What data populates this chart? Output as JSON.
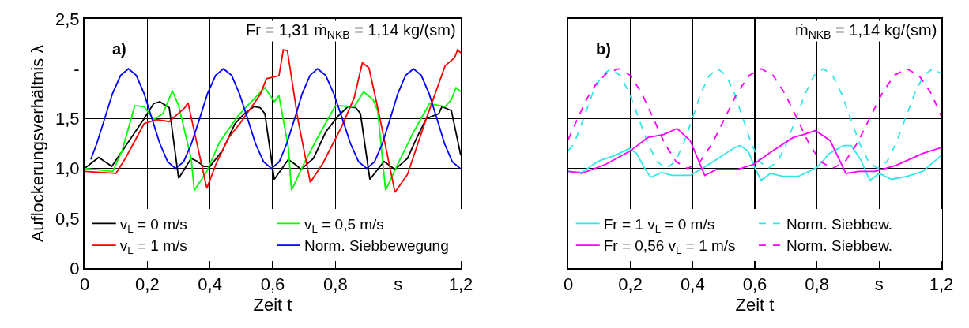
{
  "chart_data": [
    {
      "type": "line",
      "xlabel": "Zeit t",
      "ylabel": "Auflockerungsverhältnis λ",
      "xlim": [
        0,
        1.2
      ],
      "ylim": [
        0,
        2.5
      ],
      "xticks": [
        0,
        {
          "value": 0.2,
          "label": "0,2"
        },
        {
          "value": 0.4,
          "label": "0,4"
        },
        {
          "value": 0.6,
          "label": "0,6"
        },
        {
          "value": 0.8,
          "label": "0,8"
        },
        {
          "value": 1.0,
          "label": "s"
        },
        {
          "value": 1.2,
          "label": "1,2"
        }
      ],
      "yticks": [
        0,
        {
          "value": 0.5,
          "label": "0,5"
        },
        {
          "value": 1.0,
          "label": "1,0"
        },
        {
          "value": 1.5,
          "label": "1,5"
        },
        {
          "value": 2.0,
          "label": "-"
        },
        {
          "value": 2.5,
          "label": "2,5"
        }
      ],
      "grid": true,
      "legend": "bottom",
      "line_style": "solid",
      "annotations": [
        "a)",
        "Fr = 1,31 ṁ$_{NKB}$ = 1,14 kg/(sm)"
      ],
      "series": [
        {
          "name": "v$_{L}$ = 0 m/s",
          "color": "#000000",
          "x": [
            0,
            0.045,
            0.087,
            0.19,
            0.22,
            0.24,
            0.27,
            0.3,
            0.34,
            0.36,
            0.38,
            0.4,
            0.44,
            0.48,
            0.51,
            0.54,
            0.56,
            0.575,
            0.605,
            0.65,
            0.676,
            0.69,
            0.73,
            0.77,
            0.81,
            0.84,
            0.865,
            0.88,
            0.91,
            0.955,
            0.99,
            1.03,
            1.06,
            1.09,
            1.13,
            1.14,
            1.17,
            1.2
          ],
          "values": [
            1.0,
            1.11,
            1.02,
            1.5,
            1.65,
            1.67,
            1.61,
            0.9,
            1.1,
            1.07,
            1.02,
            1.02,
            1.18,
            1.45,
            1.55,
            1.62,
            1.61,
            1.55,
            0.89,
            1.09,
            1.03,
            0.99,
            1.1,
            1.37,
            1.53,
            1.62,
            1.61,
            1.55,
            0.89,
            1.07,
            0.99,
            1.1,
            1.31,
            1.5,
            1.55,
            1.62,
            1.58,
            1.13
          ]
        },
        {
          "name": "v$_{L}$ = 0,5 m/s",
          "color": "#00ff00",
          "x": [
            0,
            0.09,
            0.12,
            0.16,
            0.19,
            0.22,
            0.25,
            0.28,
            0.3,
            0.34,
            0.35,
            0.39,
            0.43,
            0.49,
            0.52,
            0.575,
            0.605,
            0.62,
            0.65,
            0.66,
            0.7,
            0.74,
            0.8,
            0.86,
            0.89,
            0.92,
            0.935,
            0.96,
            1.0,
            1.05,
            1.1,
            1.15,
            1.17,
            1.185,
            1.2
          ],
          "values": [
            1.0,
            0.97,
            1.18,
            1.63,
            1.62,
            1.49,
            1.55,
            1.78,
            1.63,
            1.1,
            0.78,
            0.97,
            1.26,
            1.53,
            1.63,
            1.81,
            1.67,
            1.73,
            1.21,
            0.78,
            1.05,
            1.29,
            1.63,
            1.62,
            1.77,
            1.69,
            1.58,
            0.78,
            1.05,
            1.37,
            1.65,
            1.62,
            1.69,
            1.81,
            1.77
          ]
        },
        {
          "name": "v$_{L}$ = 1 m/s",
          "color": "#ff0000",
          "x": [
            0,
            0.1,
            0.13,
            0.19,
            0.23,
            0.27,
            0.32,
            0.33,
            0.35,
            0.39,
            0.42,
            0.46,
            0.5,
            0.56,
            0.58,
            0.62,
            0.634,
            0.647,
            0.68,
            0.72,
            0.76,
            0.82,
            0.86,
            0.886,
            0.907,
            0.937,
            0.99,
            1.03,
            1.09,
            1.15,
            1.18,
            1.19,
            1.2
          ],
          "values": [
            0.97,
            0.95,
            1.1,
            1.45,
            1.49,
            1.47,
            1.61,
            1.66,
            1.37,
            0.8,
            1.05,
            1.31,
            1.47,
            1.74,
            1.9,
            1.93,
            2.19,
            2.18,
            1.5,
            0.86,
            1.05,
            1.42,
            1.71,
            2.06,
            2.01,
            1.58,
            0.76,
            0.94,
            1.5,
            2.03,
            2.11,
            2.19,
            2.16
          ]
        },
        {
          "name": "Norm. Siebbewegung",
          "color": "#0000ff",
          "x": [
            0.02,
            0.039,
            0.064,
            0.089,
            0.115,
            0.14,
            0.165,
            0.19,
            0.215,
            0.24,
            0.265,
            0.29,
            0.316,
            0.341,
            0.367,
            0.392,
            0.418,
            0.443,
            0.469,
            0.494,
            0.52,
            0.545,
            0.571,
            0.596,
            0.621,
            0.645,
            0.67,
            0.694,
            0.719,
            0.743,
            0.769,
            0.795,
            0.822,
            0.848,
            0.874,
            0.9,
            0.925,
            0.95,
            0.975,
            0.999,
            1.024,
            1.049,
            1.074,
            1.099,
            1.124,
            1.148,
            1.173,
            1.198
          ],
          "values": [
            1.09,
            1.25,
            1.5,
            1.75,
            1.933,
            2.0,
            1.933,
            1.75,
            1.5,
            1.25,
            1.067,
            1.0,
            1.067,
            1.25,
            1.5,
            1.75,
            1.933,
            2.0,
            1.933,
            1.75,
            1.5,
            1.25,
            1.067,
            1.0,
            1.067,
            1.25,
            1.5,
            1.75,
            1.933,
            2.0,
            1.933,
            1.75,
            1.5,
            1.25,
            1.067,
            1.0,
            1.067,
            1.25,
            1.5,
            1.75,
            1.933,
            2.0,
            1.933,
            1.75,
            1.5,
            1.25,
            1.067,
            1.0
          ]
        }
      ]
    },
    {
      "type": "line",
      "xlabel": "Zeit t",
      "xlim": [
        0,
        1.2
      ],
      "ylim": [
        0,
        2.5
      ],
      "tick_labels": "x",
      "xticks": [
        0,
        {
          "value": 0.2,
          "label": "0,2"
        },
        {
          "value": 0.4,
          "label": "0,4"
        },
        {
          "value": 0.6,
          "label": "0,6"
        },
        {
          "value": 0.8,
          "label": "0,8"
        },
        {
          "value": 1.0,
          "label": "s"
        },
        {
          "value": 1.2,
          "label": "1,2"
        }
      ],
      "yticks": [
        {
          "value": 0,
          "label": null
        },
        {
          "value": 0.5,
          "label": null
        },
        {
          "value": 1.0,
          "label": null
        },
        {
          "value": 1.5,
          "label": null
        },
        {
          "value": 2.0,
          "label": null
        },
        {
          "value": 2.5,
          "label": null
        }
      ],
      "grid": true,
      "legend": "bottom",
      "line_style": "solid",
      "annotations": [
        "b)",
        "ṁ$_{NKB}$ = 1,14 kg/(sm)"
      ],
      "series": [
        {
          "name": "Fr = 1 v$_{L}$ = 0 m/s",
          "color": "#33e6e6",
          "x": [
            0,
            0.044,
            0.095,
            0.15,
            0.197,
            0.22,
            0.244,
            0.265,
            0.3,
            0.333,
            0.392,
            0.426,
            0.477,
            0.536,
            0.553,
            0.579,
            0.6,
            0.62,
            0.65,
            0.69,
            0.74,
            0.774,
            0.8,
            0.84,
            0.885,
            0.91,
            0.94,
            0.97,
            1.0,
            1.04,
            1.09,
            1.14,
            1.2
          ],
          "values": [
            0.97,
            0.96,
            1.07,
            1.13,
            1.2,
            1.15,
            1.01,
            0.91,
            0.96,
            0.93,
            0.93,
            0.99,
            1.09,
            1.21,
            1.23,
            1.17,
            1.01,
            0.88,
            0.95,
            0.92,
            0.92,
            0.97,
            1.01,
            1.15,
            1.23,
            1.23,
            1.09,
            0.88,
            0.95,
            0.89,
            0.92,
            0.97,
            1.13
          ]
        },
        {
          "name": "Norm. Siebbew.",
          "color": "#33e6e6",
          "line_style": "dashed",
          "x": [
            0,
            0.019,
            0.049,
            0.078,
            0.108,
            0.137,
            0.167,
            0.197,
            0.227,
            0.256,
            0.286,
            0.316,
            0.344,
            0.371,
            0.399,
            0.426,
            0.454,
            0.481,
            0.508,
            0.535,
            0.562,
            0.589,
            0.616,
            0.643,
            0.673,
            0.702,
            0.732,
            0.762,
            0.791,
            0.821,
            0.85,
            0.879,
            0.908,
            0.937,
            0.966,
            0.995,
            1.025,
            1.054,
            1.084,
            1.114,
            1.143,
            1.173,
            1.2
          ],
          "values": [
            1.18,
            1.25,
            1.5,
            1.75,
            1.933,
            2.0,
            1.933,
            1.75,
            1.5,
            1.25,
            1.067,
            1.0,
            1.067,
            1.25,
            1.5,
            1.75,
            1.933,
            2.0,
            1.933,
            1.75,
            1.5,
            1.25,
            1.067,
            1.0,
            1.067,
            1.25,
            1.5,
            1.75,
            1.933,
            2.0,
            1.933,
            1.75,
            1.5,
            1.25,
            1.067,
            1.0,
            1.067,
            1.25,
            1.5,
            1.75,
            1.933,
            2.0,
            1.95
          ]
        },
        {
          "name": "Fr = 0,56 v$_{L}$ = 1 m/s",
          "color": "#ff00ff",
          "x": [
            0,
            0.044,
            0.12,
            0.197,
            0.256,
            0.307,
            0.35,
            0.392,
            0.439,
            0.477,
            0.545,
            0.596,
            0.655,
            0.723,
            0.757,
            0.795,
            0.842,
            0.893,
            0.935,
            0.986,
            1.054,
            1.14,
            1.2
          ],
          "values": [
            0.97,
            0.95,
            1.04,
            1.17,
            1.31,
            1.34,
            1.4,
            1.28,
            0.93,
            0.99,
            0.99,
            1.04,
            1.17,
            1.31,
            1.34,
            1.38,
            1.28,
            0.95,
            0.97,
            0.97,
            1.03,
            1.15,
            1.21
          ]
        },
        {
          "name": "Norm. Siebbew.",
          "color": "#ff00ff",
          "line_style": "dashed",
          "x": [
            0,
            0.03,
            0.06,
            0.09,
            0.125,
            0.163,
            0.2,
            0.237,
            0.274,
            0.31,
            0.347,
            0.384,
            0.424,
            0.463,
            0.503,
            0.542,
            0.582,
            0.621,
            0.659,
            0.697,
            0.736,
            0.774,
            0.812,
            0.85,
            0.89,
            0.929,
            0.969,
            1.009,
            1.048,
            1.088,
            1.128,
            1.168,
            1.2
          ],
          "values": [
            1.29,
            1.5,
            1.7,
            1.85,
            1.96,
            2.0,
            1.933,
            1.75,
            1.5,
            1.25,
            1.067,
            1.0,
            1.067,
            1.25,
            1.5,
            1.75,
            1.933,
            2.0,
            1.933,
            1.75,
            1.5,
            1.25,
            1.067,
            1.0,
            1.067,
            1.25,
            1.5,
            1.75,
            1.933,
            2.0,
            1.933,
            1.75,
            1.52
          ]
        }
      ]
    }
  ]
}
